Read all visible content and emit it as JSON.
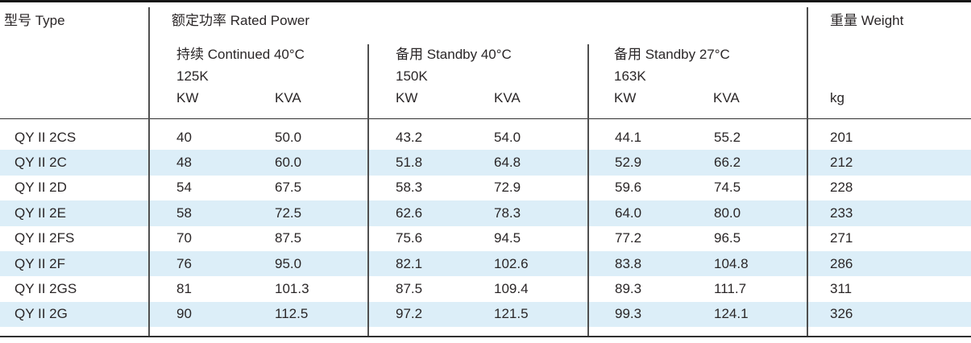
{
  "table": {
    "type_header": "型号 Type",
    "rated_power_header": "额定功率 Rated Power",
    "weight_header": "重量 Weight",
    "weight_unit": "kg",
    "groups": [
      {
        "title": "持续 Continued 40°C",
        "subtitle": "125K",
        "unit1": "KW",
        "unit2": "KVA"
      },
      {
        "title": "备用 Standby 40°C",
        "subtitle": "150K",
        "unit1": "KW",
        "unit2": "KVA"
      },
      {
        "title": "备用 Standby 27°C",
        "subtitle": "163K",
        "unit1": "KW",
        "unit2": "KVA"
      }
    ],
    "rows": [
      {
        "type": "QY II 2CS",
        "values": [
          "40",
          "50.0",
          "43.2",
          "54.0",
          "44.1",
          "55.2",
          "201"
        ]
      },
      {
        "type": "QY II 2C",
        "values": [
          "48",
          "60.0",
          "51.8",
          "64.8",
          "52.9",
          "66.2",
          "212"
        ]
      },
      {
        "type": "QY II 2D",
        "values": [
          "54",
          "67.5",
          "58.3",
          "72.9",
          "59.6",
          "74.5",
          "228"
        ]
      },
      {
        "type": "QY II 2E",
        "values": [
          "58",
          "72.5",
          "62.6",
          "78.3",
          "64.0",
          "80.0",
          "233"
        ]
      },
      {
        "type": "QY II 2FS",
        "values": [
          "70",
          "87.5",
          "75.6",
          "94.5",
          "77.2",
          "96.5",
          "271"
        ]
      },
      {
        "type": "QY II 2F",
        "values": [
          "76",
          "95.0",
          "82.1",
          "102.6",
          "83.8",
          "104.8",
          "286"
        ]
      },
      {
        "type": "QY II 2GS",
        "values": [
          "81",
          "101.3",
          "87.5",
          "109.4",
          "89.3",
          "111.7",
          "311"
        ]
      },
      {
        "type": "QY II 2G",
        "values": [
          "90",
          "112.5",
          "97.2",
          "121.5",
          "99.3",
          "124.1",
          "326"
        ]
      }
    ],
    "colors": {
      "stripe": "#dceef8",
      "text": "#2a2627",
      "top_border": "#161616",
      "rule": "#4f4f4f"
    }
  }
}
